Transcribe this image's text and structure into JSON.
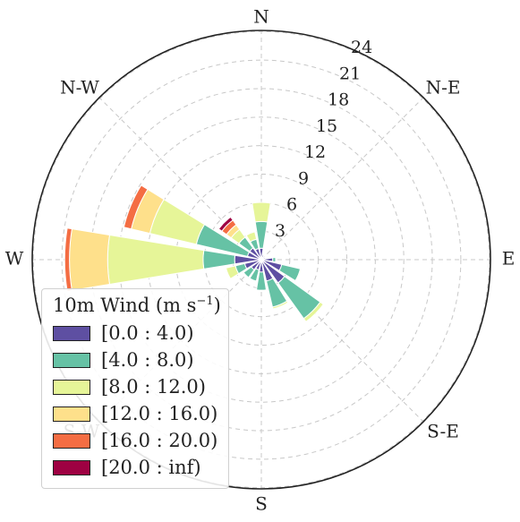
{
  "chart_data": {
    "type": "windrose",
    "title": "",
    "directions": [
      "N",
      "NNE",
      "NE",
      "ENE",
      "E",
      "ESE",
      "SE",
      "SSE",
      "S",
      "SSW",
      "SW",
      "WSW",
      "W",
      "WNW",
      "NW",
      "NNW"
    ],
    "direction_labels": [
      "N",
      "N-E",
      "E",
      "S-E",
      "S",
      "S-W",
      "W",
      "N-W"
    ],
    "radial_ticks": [
      3,
      6,
      9,
      12,
      15,
      18,
      21,
      24
    ],
    "rmax": 24,
    "grid": true,
    "legend": {
      "title": "10m Wind (m s",
      "title_exp": "−1",
      "title_end": ")",
      "placement": "lower-left",
      "bins": [
        "[0.0 : 4.0)",
        "[4.0 : 8.0)",
        "[8.0 : 12.0)",
        "[12.0 : 16.0)",
        "[16.0 : 20.0)",
        "[20.0 : inf)"
      ]
    },
    "colors": [
      "#5e4fa2",
      "#66c2a5",
      "#e6f598",
      "#fee08b",
      "#f46d43",
      "#9e0142"
    ],
    "series": [
      {
        "name": "[0.0 : 4.0)",
        "values": [
          1.2,
          0.5,
          0.4,
          0.4,
          1.2,
          2.2,
          3.0,
          2.3,
          1.3,
          1.1,
          1.3,
          1.8,
          2.8,
          1.5,
          1.5,
          1.2
        ]
      },
      {
        "name": "[4.0 : 8.0)",
        "values": [
          2.8,
          0.0,
          0.0,
          0.0,
          0.3,
          2.0,
          4.6,
          2.8,
          1.9,
          1.2,
          1.0,
          1.0,
          3.3,
          5.5,
          1.4,
          1.0
        ]
      },
      {
        "name": "[8.0 : 12.0)",
        "values": [
          2.0,
          0.0,
          0.0,
          0.0,
          0.0,
          0.1,
          0.4,
          0.2,
          0.0,
          0.0,
          0.0,
          1.0,
          10.0,
          5.0,
          1.0,
          0.8
        ]
      },
      {
        "name": "[12.0 : 16.0)",
        "values": [
          0.0,
          0.0,
          0.0,
          0.0,
          0.0,
          0.0,
          0.0,
          0.0,
          0.0,
          0.0,
          0.0,
          0.0,
          4.0,
          2.0,
          0.6,
          0.0
        ]
      },
      {
        "name": "[16.0 : 20.0)",
        "values": [
          0.0,
          0.0,
          0.0,
          0.0,
          0.0,
          0.0,
          0.0,
          0.0,
          0.0,
          0.0,
          0.0,
          0.0,
          0.5,
          0.8,
          0.6,
          0.0
        ]
      },
      {
        "name": "[20.0 : inf)",
        "values": [
          0.0,
          0.0,
          0.0,
          0.0,
          0.0,
          0.0,
          0.0,
          0.0,
          0.0,
          0.0,
          0.0,
          0.0,
          0.0,
          0.0,
          0.4,
          0.0
        ]
      }
    ]
  }
}
